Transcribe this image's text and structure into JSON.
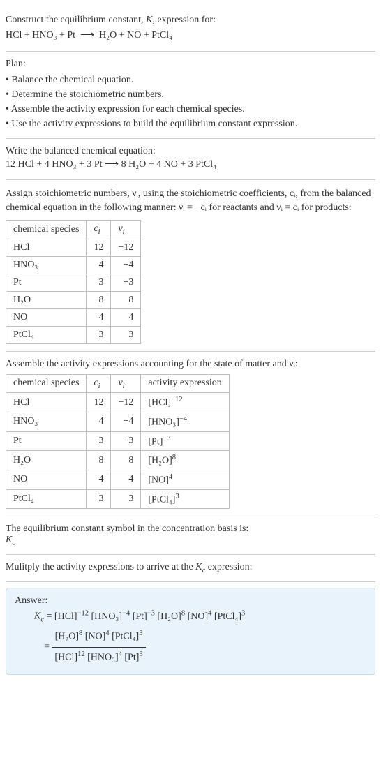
{
  "intro": {
    "line1": "Construct the equilibrium constant, K, expression for:",
    "equation_lhs": "HCl + HNO₃ + Pt",
    "arrow": "⟶",
    "equation_rhs": "H₂O + NO + PtCl₄"
  },
  "plan": {
    "heading": "Plan:",
    "items": [
      "• Balance the chemical equation.",
      "• Determine the stoichiometric numbers.",
      "• Assemble the activity expression for each chemical species.",
      "• Use the activity expressions to build the equilibrium constant expression."
    ]
  },
  "balanced": {
    "heading": "Write the balanced chemical equation:",
    "equation": "12 HCl + 4 HNO₃ + 3 Pt  ⟶  8 H₂O + 4 NO + 3 PtCl₄"
  },
  "stoich_intro": {
    "text": "Assign stoichiometric numbers, νᵢ, using the stoichiometric coefficients, cᵢ, from the balanced chemical equation in the following manner: νᵢ = −cᵢ for reactants and νᵢ = cᵢ for products:"
  },
  "table1": {
    "headers": [
      "chemical species",
      "cᵢ",
      "νᵢ"
    ],
    "rows": [
      [
        "HCl",
        "12",
        "−12"
      ],
      [
        "HNO₃",
        "4",
        "−4"
      ],
      [
        "Pt",
        "3",
        "−3"
      ],
      [
        "H₂O",
        "8",
        "8"
      ],
      [
        "NO",
        "4",
        "4"
      ],
      [
        "PtCl₄",
        "3",
        "3"
      ]
    ]
  },
  "assemble_intro": "Assemble the activity expressions accounting for the state of matter and νᵢ:",
  "table2": {
    "headers": [
      "chemical species",
      "cᵢ",
      "νᵢ",
      "activity expression"
    ],
    "rows": [
      {
        "sp": "HCl",
        "c": "12",
        "v": "−12",
        "act_base": "[HCl]",
        "act_exp": "−12"
      },
      {
        "sp": "HNO₃",
        "c": "4",
        "v": "−4",
        "act_base": "[HNO₃]",
        "act_exp": "−4"
      },
      {
        "sp": "Pt",
        "c": "3",
        "v": "−3",
        "act_base": "[Pt]",
        "act_exp": "−3"
      },
      {
        "sp": "H₂O",
        "c": "8",
        "v": "8",
        "act_base": "[H₂O]",
        "act_exp": "8"
      },
      {
        "sp": "NO",
        "c": "4",
        "v": "4",
        "act_base": "[NO]",
        "act_exp": "4"
      },
      {
        "sp": "PtCl₄",
        "c": "3",
        "v": "3",
        "act_base": "[PtCl₄]",
        "act_exp": "3"
      }
    ]
  },
  "kc_symbol": {
    "line1": "The equilibrium constant symbol in the concentration basis is:",
    "symbol": "K𝑐"
  },
  "multiply": "Mulitply the activity expressions to arrive at the K𝑐 expression:",
  "answer": {
    "label": "Answer:",
    "line1_terms": [
      {
        "base": "[HCl]",
        "exp": "−12"
      },
      {
        "base": "[HNO₃]",
        "exp": "−4"
      },
      {
        "base": "[Pt]",
        "exp": "−3"
      },
      {
        "base": "[H₂O]",
        "exp": "8"
      },
      {
        "base": "[NO]",
        "exp": "4"
      },
      {
        "base": "[PtCl₄]",
        "exp": "3"
      }
    ],
    "frac_num": [
      {
        "base": "[H₂O]",
        "exp": "8"
      },
      {
        "base": "[NO]",
        "exp": "4"
      },
      {
        "base": "[PtCl₄]",
        "exp": "3"
      }
    ],
    "frac_den": [
      {
        "base": "[HCl]",
        "exp": "12"
      },
      {
        "base": "[HNO₃]",
        "exp": "4"
      },
      {
        "base": "[Pt]",
        "exp": "3"
      }
    ]
  }
}
